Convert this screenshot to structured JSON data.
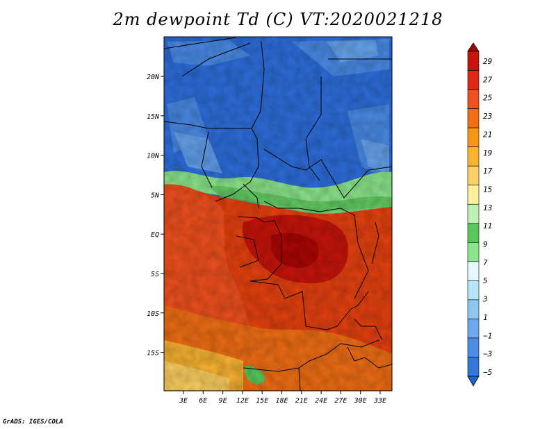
{
  "title": "2m dewpoint Td (C) VT:2020021218",
  "credit": "GrADS: IGES/COLA",
  "map": {
    "lat_ticks": [
      "20N",
      "15N",
      "10N",
      "5N",
      "EQ",
      "5S",
      "10S",
      "15S"
    ],
    "lon_ticks": [
      "3E",
      "6E",
      "9E",
      "12E",
      "15E",
      "18E",
      "21E",
      "24E",
      "27E",
      "30E",
      "33E"
    ]
  },
  "colorbar": {
    "labels": [
      "29",
      "27",
      "25",
      "23",
      "21",
      "19",
      "17",
      "15",
      "13",
      "11",
      "9",
      "7",
      "5",
      "3",
      "1",
      "−1",
      "−3",
      "−5"
    ],
    "colors": [
      "#a00000",
      "#c8140a",
      "#e12814",
      "#f0501e",
      "#f06e14",
      "#fa9614",
      "#fab432",
      "#fcd264",
      "#fff09c",
      "#bef0b4",
      "#5ac85a",
      "#8ce68c",
      "#e6f8ff",
      "#b4e6fa",
      "#8cc8f0",
      "#6eaaf0",
      "#4b8ce6",
      "#3278dc",
      "#1e64d2"
    ]
  },
  "regions": {
    "dry_north_color": "#2d6edc",
    "dry_north_light": "#4a8ae6",
    "transition_color": "#8ce68c",
    "humid_color": "#e6410f",
    "very_humid_color": "#c8140a",
    "ocean_color": "#f0501e",
    "south_color": "#fab432"
  }
}
